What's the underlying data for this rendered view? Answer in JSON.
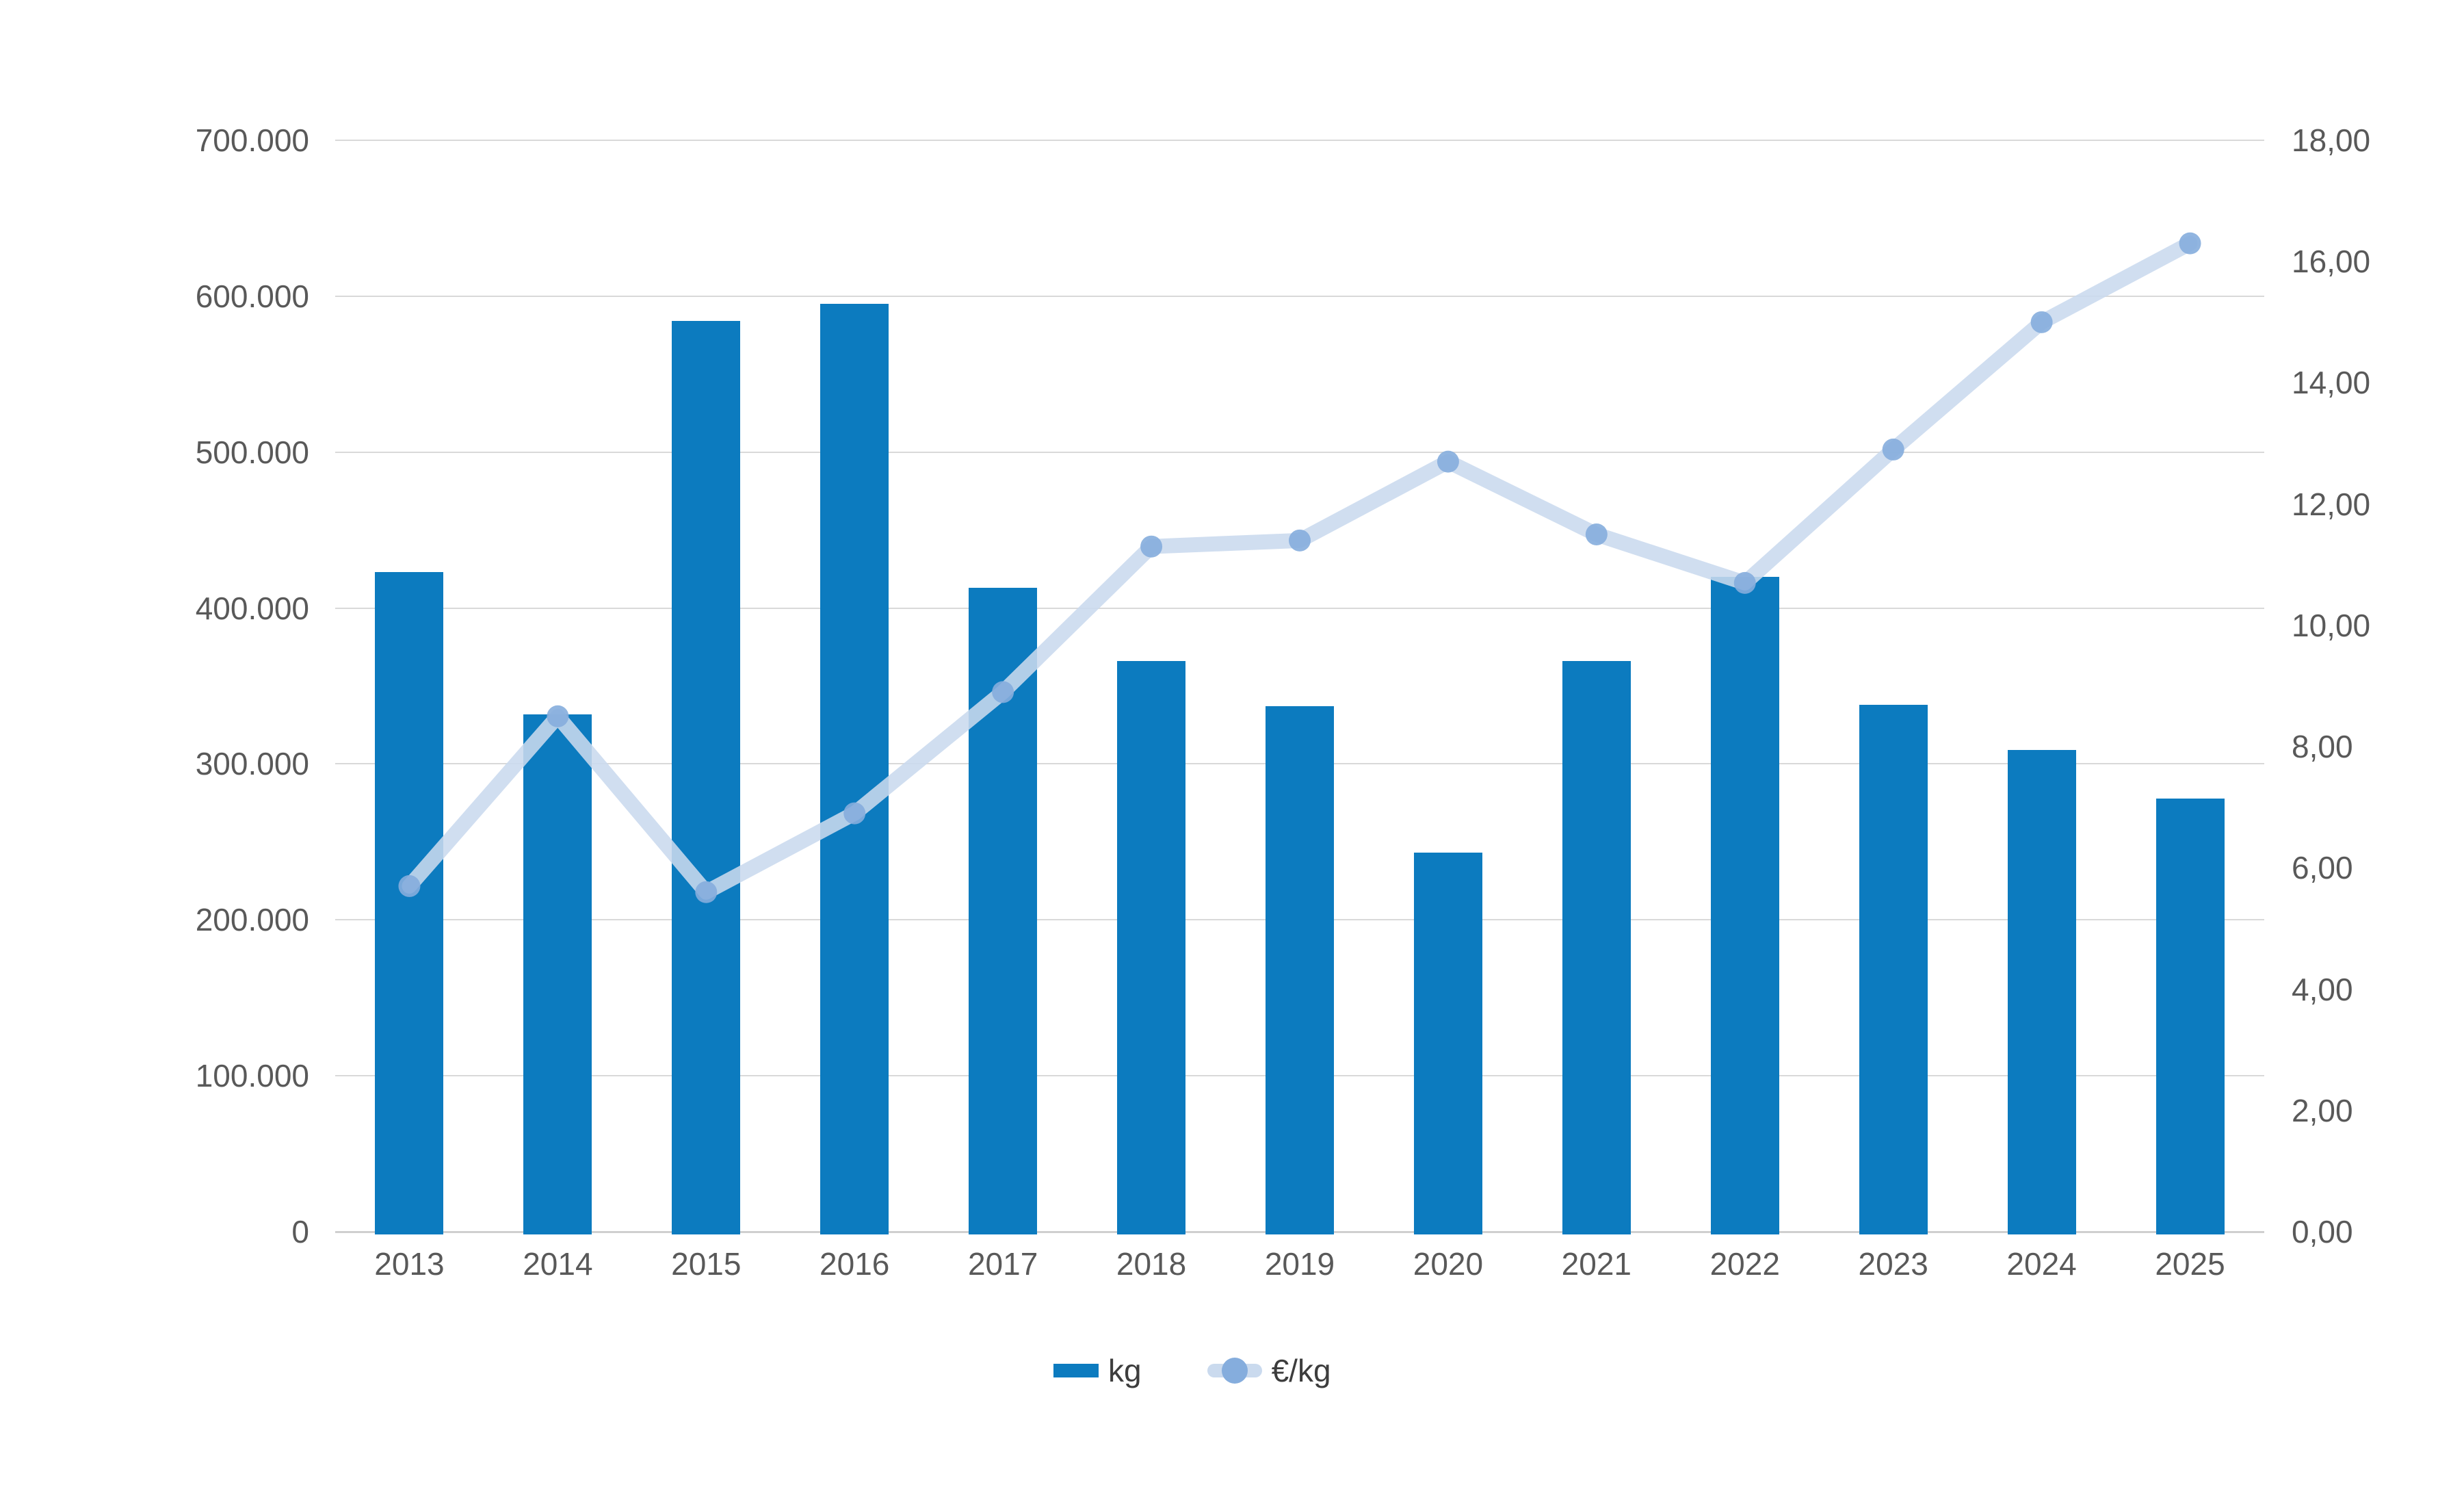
{
  "chart_data": {
    "type": "combo",
    "categories": [
      "2013",
      "2014",
      "2015",
      "2016",
      "2017",
      "2018",
      "2019",
      "2020",
      "2021",
      "2022",
      "2023",
      "2024",
      "2025"
    ],
    "series": [
      {
        "name": "kg",
        "type": "bar",
        "axis": "left",
        "color": "#0c7bbf",
        "values": [
          423000,
          332000,
          584000,
          595000,
          413000,
          366000,
          337000,
          243000,
          366000,
          420000,
          338000,
          309000,
          278000
        ]
      },
      {
        "name": "€/kg",
        "type": "line",
        "axis": "right",
        "color": "#cadaee",
        "marker_color": "#85addd",
        "values": [
          5.7,
          8.5,
          5.6,
          6.9,
          8.9,
          11.3,
          11.4,
          12.7,
          11.5,
          10.7,
          12.9,
          15.0,
          16.3
        ]
      }
    ],
    "left_axis": {
      "min": 0,
      "max": 700000,
      "ticks": [
        "0",
        "100.000",
        "200.000",
        "300.000",
        "400.000",
        "500.000",
        "600.000",
        "700.000"
      ]
    },
    "right_axis": {
      "min": 0,
      "max": 18,
      "ticks": [
        "0,00",
        "2,00",
        "4,00",
        "6,00",
        "8,00",
        "10,00",
        "12,00",
        "14,00",
        "16,00",
        "18,00"
      ]
    },
    "grid": true,
    "legend_position": "bottom",
    "colors": {
      "gridline": "#d9d9d9",
      "axis_line": "#cfcfcf",
      "tick_text": "#595959",
      "legend_text": "#3d3d3d"
    }
  }
}
